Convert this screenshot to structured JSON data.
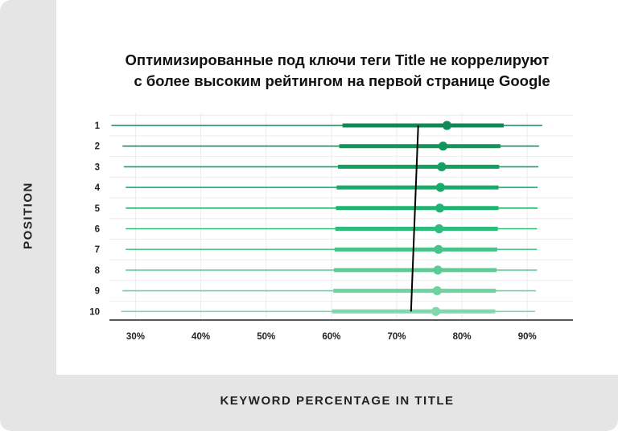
{
  "title_line1": "Оптимизированные под ключи теги Title не коррелируют",
  "title_line2": "с более высоким рейтингом на первой странице Google",
  "ylabel": "POSITION",
  "xlabel": "KEYWORD PERCENTAGE IN TITLE",
  "chart_data": {
    "type": "range-dot",
    "title": "Оптимизированные под ключи теги Title не коррелируют с более высоким рейтингом на первой странице Google",
    "xlabel": "KEYWORD PERCENTAGE IN TITLE",
    "ylabel": "POSITION",
    "x_ticks": [
      "30%",
      "40%",
      "50%",
      "60%",
      "70%",
      "80%",
      "90%"
    ],
    "x_tick_values": [
      30,
      40,
      50,
      60,
      70,
      80,
      90
    ],
    "xlim": [
      26,
      97
    ],
    "categories": [
      "1",
      "2",
      "3",
      "4",
      "5",
      "6",
      "7",
      "8",
      "9",
      "10"
    ],
    "series": [
      {
        "whisker_low": [
          26.3,
          28.0,
          28.2,
          28.5,
          28.5,
          28.5,
          28.5,
          28.5,
          28.0,
          27.8
        ],
        "whisker_high": [
          92.3,
          91.8,
          91.7,
          91.6,
          91.6,
          91.5,
          91.5,
          91.5,
          91.3,
          91.2
        ],
        "box_low": [
          61.7,
          61.2,
          61.0,
          60.8,
          60.7,
          60.6,
          60.5,
          60.4,
          60.3,
          60.1
        ],
        "box_high": [
          86.4,
          85.9,
          85.7,
          85.6,
          85.6,
          85.5,
          85.4,
          85.3,
          85.2,
          85.1
        ],
        "median": [
          77.7,
          77.1,
          76.9,
          76.7,
          76.6,
          76.5,
          76.4,
          76.3,
          76.2,
          76.0
        ]
      }
    ],
    "trend_line": {
      "x": [
        73.3,
        72.2
      ],
      "y": [
        "1",
        "10"
      ]
    },
    "grid": true,
    "legend": "none",
    "colors": [
      "#0f8a57",
      "#12955d",
      "#14a063",
      "#18ab6a",
      "#1fb571",
      "#2fbd7c",
      "#47c589",
      "#5ccc95",
      "#6ed3a1",
      "#7fd9ac"
    ],
    "trend_color": "#000000"
  }
}
